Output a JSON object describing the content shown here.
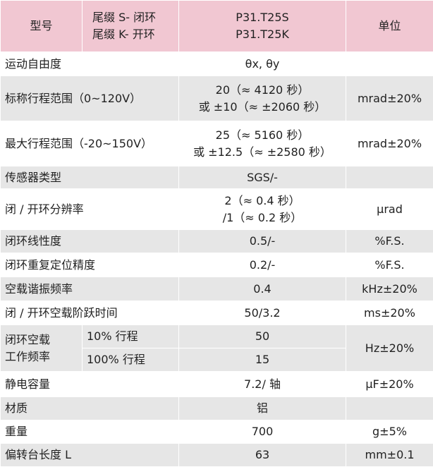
{
  "header": {
    "model_label": "型号",
    "suffix_lines": [
      "尾缀 S- 闭环",
      "尾缀 K- 开环"
    ],
    "model_lines": [
      "P31.T25S",
      "P31.T25K"
    ],
    "unit_label": "单位"
  },
  "rows": {
    "dof": {
      "label": "运动自由度",
      "value": "θx, θy",
      "unit": ""
    },
    "nominal_travel": {
      "label": "标称行程范围（0~120V）",
      "value_lines": [
        "20（≈ 4120 秒）",
        "或 ±10（≈ ±2060 秒）"
      ],
      "unit": "mrad±20%"
    },
    "max_travel": {
      "label": "最大行程范围（-20~150V）",
      "value_lines": [
        "25（≈ 5160 秒）",
        "或 ±12.5（≈ ±2580 秒）"
      ],
      "unit": "mrad±20%"
    },
    "sensor": {
      "label": "传感器类型",
      "value": "SGS/-",
      "unit": ""
    },
    "resolution": {
      "label": "闭 / 开环分辨率",
      "value_lines": [
        "2（≈ 0.4 秒）",
        "/1（≈ 0.2 秒）"
      ],
      "unit": "μrad"
    },
    "linearity": {
      "label": "闭环线性度",
      "value": "0.5/-",
      "unit": "%F.S."
    },
    "repeatability": {
      "label": "闭环重复定位精度",
      "value": "0.2/-",
      "unit": "%F.S."
    },
    "resonance": {
      "label": "空载谐振频率",
      "value": "0.4",
      "unit": "kHz±20%"
    },
    "step_time": {
      "label": "闭 / 开环空载阶跃时间",
      "value": "50/3.2",
      "unit": "ms±20%"
    },
    "work_freq": {
      "label_lines": [
        "闭环空载",
        "工作频率"
      ],
      "sub1": "10% 行程",
      "val1": "50",
      "sub2": "100% 行程",
      "val2": "15",
      "unit": "Hz±20%"
    },
    "capacitance": {
      "label": "静电容量",
      "value": "7.2/ 轴",
      "unit": "μF±20%"
    },
    "material": {
      "label": "材质",
      "value": "铝",
      "unit": ""
    },
    "weight": {
      "label": "重量",
      "value": "700",
      "unit": "g±5%"
    },
    "length": {
      "label": "偏转台长度 L",
      "value": "63",
      "unit": "mm±0.1"
    }
  },
  "colors": {
    "header_bg": "#f1c7d2",
    "row_alt_bg": "#e6e6e6",
    "row_bg": "#ffffff"
  }
}
